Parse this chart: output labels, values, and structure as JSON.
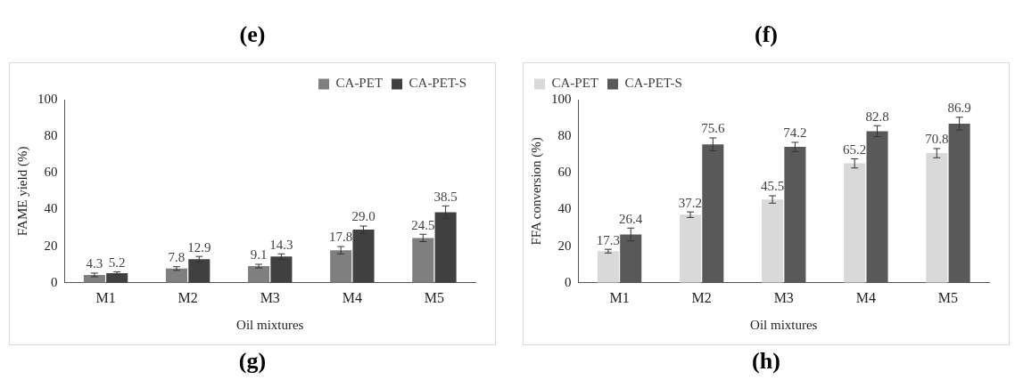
{
  "chart_data": [
    {
      "type": "bar",
      "ylabel": "FAME yield (%)",
      "xlabel": "Oil mixtures",
      "categories": [
        "M1",
        "M2",
        "M3",
        "M4",
        "M5"
      ],
      "annotations": [
        "(e)",
        "(g)"
      ],
      "series": [
        {
          "name": "CA-PET",
          "color": "#7f7f7f",
          "values": [
            4.3,
            7.8,
            9.1,
            17.8,
            24.5
          ],
          "value_labels": [
            "4.3",
            "7.8",
            "9.1",
            "17.8",
            "24.5"
          ],
          "errors": [
            1,
            1,
            1,
            2,
            2
          ]
        },
        {
          "name": "CA-PET-S",
          "color": "#404040",
          "values": [
            5.2,
            12.9,
            14.3,
            29.0,
            38.5
          ],
          "value_labels": [
            "5.2",
            "12.9",
            "14.3",
            "29.0",
            "38.5"
          ],
          "errors": [
            0.8,
            1.5,
            1.5,
            2,
            3.5
          ]
        }
      ],
      "ylim": [
        0,
        100
      ],
      "yticks": [
        0,
        20,
        40,
        60,
        80,
        100
      ],
      "grid": false,
      "legend": "top right"
    },
    {
      "type": "bar",
      "ylabel": "FFA conversion (%)",
      "xlabel": "Oil mixtures",
      "categories": [
        "M1",
        "M2",
        "M3",
        "M4",
        "M5"
      ],
      "annotations": [
        "(f)",
        "(h)"
      ],
      "series": [
        {
          "name": "CA-PET",
          "color": "#d9d9d9",
          "values": [
            17.3,
            37.2,
            45.5,
            65.2,
            70.8
          ],
          "value_labels": [
            "17.3",
            "37.2",
            "45.5",
            "65.2",
            "70.8"
          ],
          "errors": [
            1,
            1.5,
            2,
            2.5,
            2.5
          ]
        },
        {
          "name": "CA-PET-S",
          "color": "#595959",
          "values": [
            26.4,
            75.6,
            74.2,
            82.8,
            86.9
          ],
          "value_labels": [
            "26.4",
            "75.6",
            "74.2",
            "82.8",
            "86.9"
          ],
          "errors": [
            3.5,
            3.5,
            2.5,
            3,
            3.5
          ]
        }
      ],
      "ylim": [
        0,
        100
      ],
      "yticks": [
        0,
        20,
        40,
        60,
        80,
        100
      ],
      "grid": false,
      "legend": "top left"
    }
  ]
}
